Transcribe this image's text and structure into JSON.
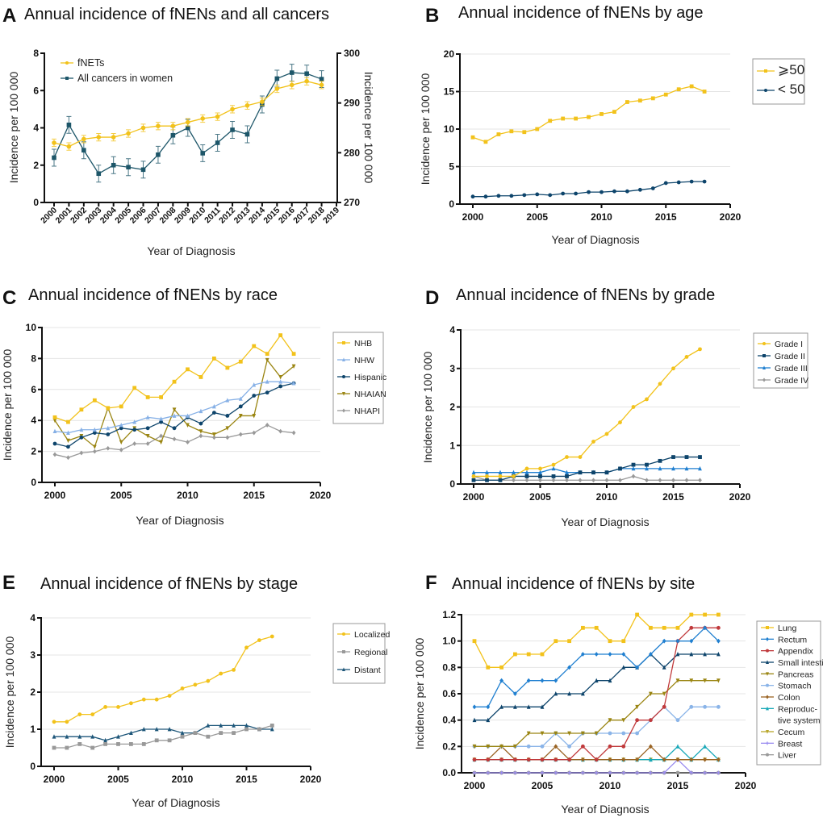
{
  "chart_data": [
    {
      "panel": "A",
      "title": "Annual incidence of fNENs and all cancers",
      "type": "line",
      "xlabel": "Year of Diagnosis",
      "ylabel": "Incidence per 100 000",
      "ylabel_right": "Incidence per 100 000",
      "xlim": [
        2000,
        2019
      ],
      "xticks": [
        2000,
        2001,
        2002,
        2003,
        2004,
        2005,
        2006,
        2007,
        2008,
        2009,
        2010,
        2011,
        2012,
        2013,
        2014,
        2015,
        2016,
        2017,
        2018,
        2019
      ],
      "ylim": [
        0,
        8
      ],
      "yticks": [
        0,
        2,
        4,
        6,
        8
      ],
      "ylim_right": [
        270,
        300
      ],
      "yticks_right": [
        270,
        280,
        290,
        300
      ],
      "grid": false,
      "legend": "top-left",
      "x_start": 2000,
      "series": [
        {
          "name": "fNETs",
          "color": "#f2c21b",
          "marker": "circle",
          "axis": "left",
          "error": 0.2,
          "values": [
            3.2,
            3.0,
            3.4,
            3.5,
            3.5,
            3.7,
            4.0,
            4.1,
            4.1,
            4.3,
            4.5,
            4.6,
            5.0,
            5.2,
            5.4,
            6.1,
            6.3,
            6.5,
            6.3
          ]
        },
        {
          "name": "All cancers in women",
          "color": "#1d5669",
          "marker": "square",
          "axis": "right",
          "error": 1.7,
          "values": [
            279.0,
            285.6,
            280.5,
            275.8,
            277.5,
            277.1,
            276.6,
            279.6,
            283.5,
            285.0,
            279.9,
            282.0,
            284.6,
            283.7,
            289.7,
            294.9,
            296.1,
            295.9,
            294.8
          ]
        }
      ]
    },
    {
      "panel": "B",
      "title": "Annual incidence of fNENs by age",
      "type": "line",
      "xlabel": "Year of Diagnosis",
      "ylabel": "Incidence per 100 000",
      "xlim": [
        2000,
        2020
      ],
      "xticks": [
        2000,
        2005,
        2010,
        2015,
        2020
      ],
      "ylim": [
        0,
        20
      ],
      "yticks": [
        0,
        5,
        10,
        15,
        20
      ],
      "grid": true,
      "legend": "right",
      "x_start": 2000,
      "series": [
        {
          "name": "⩾50",
          "color": "#f2c21b",
          "marker": "square",
          "values": [
            8.9,
            8.3,
            9.3,
            9.7,
            9.6,
            10.0,
            11.1,
            11.4,
            11.4,
            11.6,
            12.0,
            12.3,
            13.6,
            13.8,
            14.1,
            14.6,
            15.3,
            15.7,
            15.0
          ]
        },
        {
          "name": "<  50",
          "color": "#0d446b",
          "marker": "circle",
          "values": [
            1.0,
            1.0,
            1.1,
            1.1,
            1.2,
            1.3,
            1.2,
            1.4,
            1.4,
            1.6,
            1.6,
            1.7,
            1.7,
            1.9,
            2.1,
            2.8,
            2.9,
            3.0,
            3.0
          ]
        }
      ]
    },
    {
      "panel": "C",
      "title": "Annual incidence of fNENs by race",
      "type": "line",
      "xlabel": "Year of Diagnosis",
      "ylabel": "Incidence per 100 000",
      "xlim": [
        2000,
        2020
      ],
      "xticks": [
        2000,
        2005,
        2010,
        2015,
        2020
      ],
      "ylim": [
        0,
        10
      ],
      "yticks": [
        0,
        2,
        4,
        6,
        8,
        10
      ],
      "grid": true,
      "legend": "right",
      "x_start": 2000,
      "series": [
        {
          "name": "NHB",
          "color": "#f2c21b",
          "marker": "square",
          "values": [
            4.2,
            3.9,
            4.7,
            5.3,
            4.8,
            4.9,
            6.1,
            5.5,
            5.5,
            6.5,
            7.3,
            6.8,
            8.0,
            7.4,
            7.8,
            8.8,
            8.3,
            9.5,
            8.3
          ]
        },
        {
          "name": "NHW",
          "color": "#86b0e6",
          "marker": "triangle",
          "values": [
            3.3,
            3.2,
            3.4,
            3.4,
            3.5,
            3.7,
            3.9,
            4.2,
            4.1,
            4.3,
            4.3,
            4.6,
            4.9,
            5.3,
            5.4,
            6.3,
            6.5,
            6.5,
            6.4
          ]
        },
        {
          "name": "Hispanic",
          "color": "#0d446b",
          "marker": "circle",
          "values": [
            2.5,
            2.3,
            2.9,
            3.2,
            3.1,
            3.5,
            3.4,
            3.5,
            3.9,
            3.5,
            4.2,
            3.8,
            4.5,
            4.3,
            4.9,
            5.6,
            5.8,
            6.2,
            6.4
          ]
        },
        {
          "name": "NHAIAN",
          "color": "#9a8512",
          "marker": "tri-down",
          "values": [
            4.0,
            2.7,
            3.0,
            2.3,
            4.8,
            2.6,
            3.5,
            3.0,
            2.6,
            4.7,
            3.7,
            3.3,
            3.1,
            3.5,
            4.3,
            4.3,
            7.9,
            6.8,
            7.5
          ]
        },
        {
          "name": "NHAPI",
          "color": "#999999",
          "marker": "diamond",
          "values": [
            1.8,
            1.6,
            1.9,
            2.0,
            2.2,
            2.1,
            2.5,
            2.5,
            3.0,
            2.8,
            2.6,
            3.0,
            2.9,
            2.9,
            3.1,
            3.2,
            3.7,
            3.3,
            3.2
          ]
        }
      ]
    },
    {
      "panel": "D",
      "title": "Annual incidence of fNENs by grade",
      "type": "line",
      "xlabel": "Year of Diagnosis",
      "ylabel": "Incidence per 100 000",
      "xlim": [
        2000,
        2020
      ],
      "xticks": [
        2000,
        2005,
        2010,
        2015,
        2020
      ],
      "ylim": [
        0,
        4
      ],
      "yticks": [
        0,
        1,
        2,
        3,
        4
      ],
      "grid": true,
      "legend": "right",
      "x_start": 2000,
      "series": [
        {
          "name": "Grade I",
          "color": "#f2c21b",
          "marker": "circle",
          "values": [
            0.2,
            0.2,
            0.2,
            0.2,
            0.4,
            0.4,
            0.5,
            0.7,
            0.7,
            1.1,
            1.3,
            1.6,
            2.0,
            2.2,
            2.6,
            3.0,
            3.3,
            3.5
          ]
        },
        {
          "name": "Grade II",
          "color": "#0d446b",
          "marker": "square",
          "values": [
            0.1,
            0.1,
            0.1,
            0.2,
            0.2,
            0.2,
            0.2,
            0.2,
            0.3,
            0.3,
            0.3,
            0.4,
            0.5,
            0.5,
            0.6,
            0.7,
            0.7,
            0.7
          ]
        },
        {
          "name": "Grade III",
          "color": "#1f7fd0",
          "marker": "triangle",
          "values": [
            0.3,
            0.3,
            0.3,
            0.3,
            0.3,
            0.3,
            0.4,
            0.3,
            0.3,
            0.3,
            0.3,
            0.4,
            0.4,
            0.4,
            0.4,
            0.4,
            0.4,
            0.4
          ]
        },
        {
          "name": "Grade IV",
          "color": "#999999",
          "marker": "diamond",
          "values": [
            0.2,
            0.1,
            0.1,
            0.1,
            0.1,
            0.1,
            0.1,
            0.1,
            0.1,
            0.1,
            0.1,
            0.1,
            0.2,
            0.1,
            0.1,
            0.1,
            0.1,
            0.1
          ]
        }
      ]
    },
    {
      "panel": "E",
      "title": "Annual incidence of fNENs by stage",
      "type": "line",
      "xlabel": "Year of Diagnosis",
      "ylabel": "Incidence per 100 000",
      "xlim": [
        2000,
        2020
      ],
      "xticks": [
        2000,
        2005,
        2010,
        2015,
        2020
      ],
      "ylim": [
        0,
        4
      ],
      "yticks": [
        0,
        1,
        2,
        3,
        4
      ],
      "grid": true,
      "legend": "right",
      "x_start": 2000,
      "series": [
        {
          "name": "Localized",
          "color": "#f2c21b",
          "marker": "circle",
          "values": [
            1.2,
            1.2,
            1.4,
            1.4,
            1.6,
            1.6,
            1.7,
            1.8,
            1.8,
            1.9,
            2.1,
            2.2,
            2.3,
            2.5,
            2.6,
            3.2,
            3.4,
            3.5
          ]
        },
        {
          "name": "Regional",
          "color": "#999999",
          "marker": "square",
          "values": [
            0.5,
            0.5,
            0.6,
            0.5,
            0.6,
            0.6,
            0.6,
            0.6,
            0.7,
            0.7,
            0.8,
            0.9,
            0.8,
            0.9,
            0.9,
            1.0,
            1.0,
            1.1
          ]
        },
        {
          "name": "Distant",
          "color": "#1d5679",
          "marker": "triangle",
          "values": [
            0.8,
            0.8,
            0.8,
            0.8,
            0.7,
            0.8,
            0.9,
            1.0,
            1.0,
            1.0,
            0.9,
            0.9,
            1.1,
            1.1,
            1.1,
            1.1,
            1.0,
            1.0
          ]
        }
      ]
    },
    {
      "panel": "F",
      "title": "Annual incidence of fNENs by site",
      "type": "line",
      "xlabel": "Year of Diagnosis",
      "ylabel": "Incidence per 100 000",
      "xlim": [
        2000,
        2020
      ],
      "xticks": [
        2000,
        2005,
        2010,
        2015,
        2020
      ],
      "ylim": [
        0,
        1.2
      ],
      "yticks": [
        "0.0",
        "0.2",
        "0.4",
        "0.6",
        "0.8",
        "1.0",
        "1.2"
      ],
      "grid": true,
      "legend": "right",
      "x_start": 2000,
      "series": [
        {
          "name": "Lung",
          "color": "#f2c21b",
          "marker": "square",
          "values": [
            1.0,
            0.8,
            0.8,
            0.9,
            0.9,
            0.9,
            1.0,
            1.0,
            1.1,
            1.1,
            1.0,
            1.0,
            1.2,
            1.1,
            1.1,
            1.1,
            1.2,
            1.2,
            1.2
          ]
        },
        {
          "name": "Rectum",
          "color": "#1f7fd0",
          "marker": "diamond",
          "values": [
            0.5,
            0.5,
            0.7,
            0.6,
            0.7,
            0.7,
            0.7,
            0.8,
            0.9,
            0.9,
            0.9,
            0.9,
            0.8,
            0.9,
            1.0,
            1.0,
            1.0,
            1.1,
            1.0
          ]
        },
        {
          "name": "Appendix",
          "color": "#c0393b",
          "marker": "circle",
          "values": [
            0.1,
            0.1,
            0.1,
            0.1,
            0.1,
            0.1,
            0.1,
            0.1,
            0.2,
            0.1,
            0.2,
            0.2,
            0.4,
            0.4,
            0.5,
            1.0,
            1.1,
            1.1,
            1.1
          ]
        },
        {
          "name": "Small intestine",
          "color": "#0d446b",
          "marker": "triangle",
          "values": [
            0.4,
            0.4,
            0.5,
            0.5,
            0.5,
            0.5,
            0.6,
            0.6,
            0.6,
            0.7,
            0.7,
            0.8,
            0.8,
            0.9,
            0.8,
            0.9,
            0.9,
            0.9,
            0.9
          ]
        },
        {
          "name": "Pancreas",
          "color": "#9a8512",
          "marker": "tri-down",
          "values": [
            0.2,
            0.2,
            0.2,
            0.2,
            0.3,
            0.3,
            0.3,
            0.3,
            0.3,
            0.3,
            0.4,
            0.4,
            0.5,
            0.6,
            0.6,
            0.7,
            0.7,
            0.7,
            0.7
          ]
        },
        {
          "name": "Stomach",
          "color": "#8ab4e8",
          "marker": "circle",
          "values": [
            0.2,
            0.2,
            0.2,
            0.2,
            0.2,
            0.2,
            0.3,
            0.2,
            0.3,
            0.3,
            0.3,
            0.3,
            0.3,
            0.4,
            0.5,
            0.4,
            0.5,
            0.5,
            0.5
          ]
        },
        {
          "name": "Colon",
          "color": "#9a6424",
          "marker": "diamond",
          "values": [
            0.1,
            0.1,
            0.2,
            0.1,
            0.1,
            0.1,
            0.2,
            0.1,
            0.1,
            0.1,
            0.1,
            0.1,
            0.1,
            0.2,
            0.1,
            0.1,
            0.1,
            0.1,
            0.1
          ]
        },
        {
          "name": "Reproduc-\ntive system",
          "color": "#17a8b8",
          "marker": "triangle",
          "values": [
            0.1,
            0.1,
            0.1,
            0.1,
            0.1,
            0.1,
            0.1,
            0.1,
            0.1,
            0.1,
            0.1,
            0.1,
            0.1,
            0.1,
            0.1,
            0.2,
            0.1,
            0.2,
            0.1
          ]
        },
        {
          "name": "Cecum",
          "color": "#b8a62a",
          "marker": "tri-down",
          "values": [
            0.1,
            0.1,
            0.1,
            0.1,
            0.1,
            0.1,
            0.1,
            0.1,
            0.1,
            0.1,
            0.1,
            0.1,
            0.1,
            0.1,
            0.1,
            0.1,
            0.1,
            0.1,
            0.1
          ]
        },
        {
          "name": "Breast",
          "color": "#9a8cf0",
          "marker": "plus",
          "values": [
            0,
            0,
            0,
            0,
            0,
            0,
            0,
            0,
            0,
            0,
            0,
            0,
            0,
            0,
            0,
            0.1,
            0,
            0,
            0
          ]
        },
        {
          "name": "Liver",
          "color": "#999999",
          "marker": "circle",
          "values": [
            0,
            0,
            0,
            0,
            0,
            0,
            0,
            0,
            0,
            0,
            0,
            0,
            0,
            0,
            0,
            0,
            0,
            0,
            0
          ]
        }
      ]
    }
  ]
}
